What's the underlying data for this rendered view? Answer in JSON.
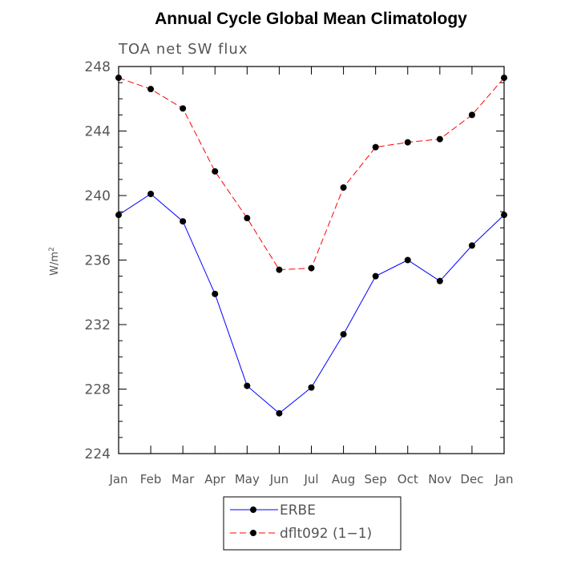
{
  "chart_data": {
    "type": "line",
    "title": "Annual Cycle Global Mean Climatology",
    "subtitle": "TOA net SW flux",
    "xlabel": "",
    "ylabel_base": "W/m",
    "ylabel_sup": "2",
    "categories": [
      "Jan",
      "Feb",
      "Mar",
      "Apr",
      "May",
      "Jun",
      "Jul",
      "Aug",
      "Sep",
      "Oct",
      "Nov",
      "Dec",
      "Jan"
    ],
    "ylim": [
      224,
      248
    ],
    "yticks": [
      224,
      228,
      232,
      236,
      240,
      244,
      248
    ],
    "grid": false,
    "legend_position": "bottom",
    "series": [
      {
        "name": "ERBE",
        "color": "#0000ff",
        "dashed": false,
        "values": [
          238.8,
          240.1,
          238.4,
          233.9,
          228.2,
          226.5,
          228.1,
          231.4,
          235.0,
          236.0,
          234.7,
          236.9,
          238.8
        ]
      },
      {
        "name": "dflt092 (1−1)",
        "color": "#ff0000",
        "dashed": true,
        "values": [
          247.3,
          246.6,
          245.4,
          241.5,
          238.6,
          235.4,
          235.5,
          240.5,
          243.0,
          243.3,
          243.5,
          245.0,
          247.3
        ]
      }
    ]
  }
}
